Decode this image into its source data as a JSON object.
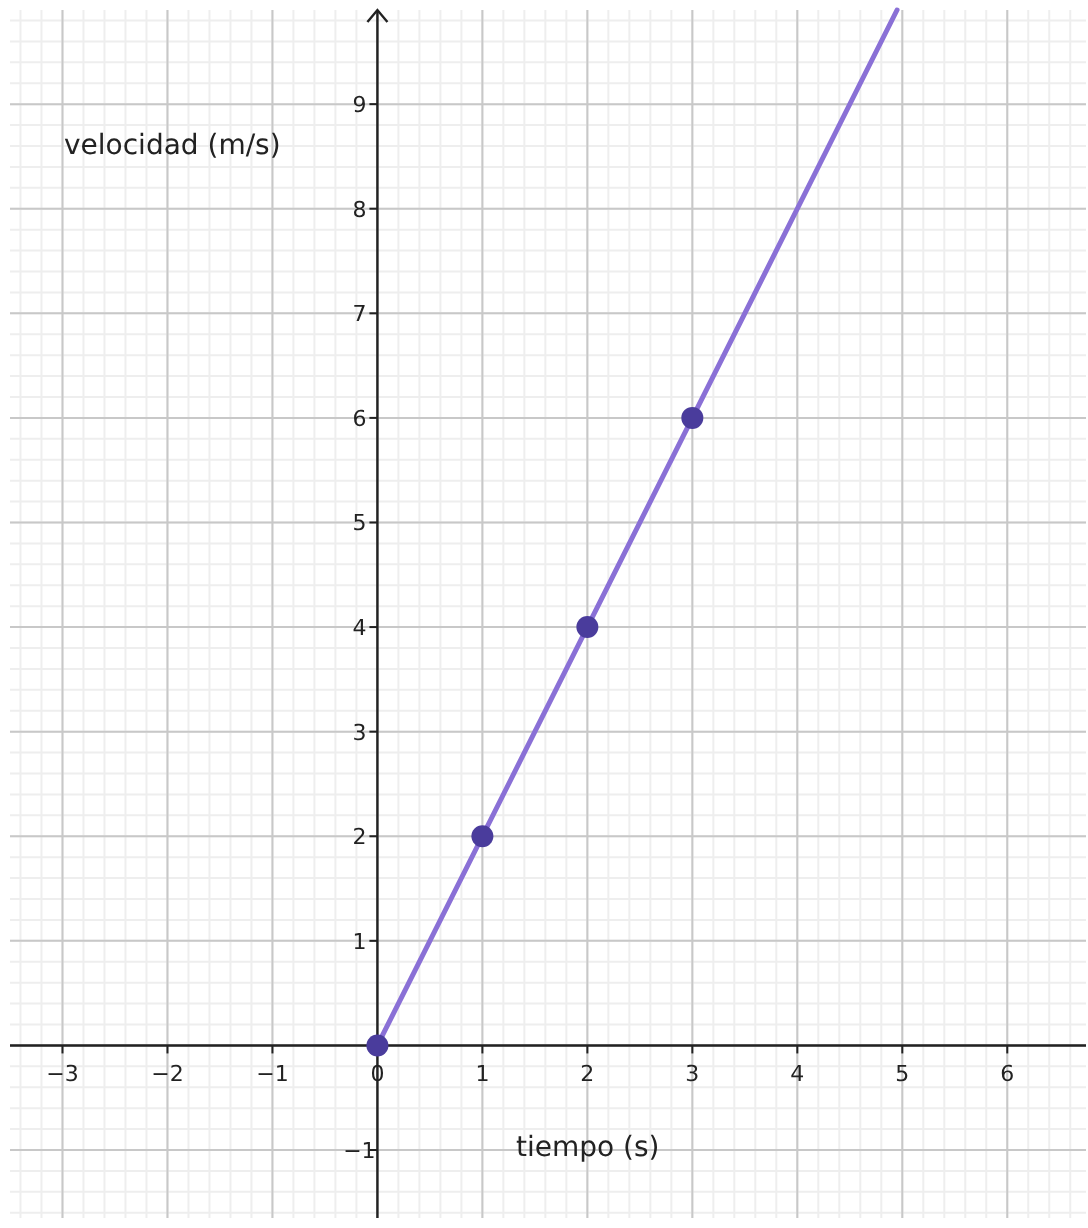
{
  "chart_data": {
    "type": "line",
    "xlabel": "tiempo (s)",
    "ylabel": "velocidad (m/s)",
    "xlim": [
      -3.5,
      6.75
    ],
    "ylim": [
      -1.65,
      9.9
    ],
    "xticks": [
      {
        "value": -3,
        "label": "−3"
      },
      {
        "value": -2,
        "label": "−2"
      },
      {
        "value": -1,
        "label": "−1"
      },
      0,
      1,
      2,
      3,
      4,
      5,
      6
    ],
    "yticks": [
      {
        "value": -1,
        "label": "−1"
      },
      {
        "value": 0,
        "label": null
      },
      1,
      2,
      3,
      4,
      5,
      6,
      7,
      8,
      9
    ],
    "grid": true,
    "series": [
      {
        "color": "#8a70d6",
        "x": [
          0,
          4.95
        ],
        "values": [
          0,
          9.9
        ],
        "marker": "none"
      },
      {
        "type": "scatter",
        "color": "#4a3c9c",
        "x": [
          0,
          1,
          2,
          3
        ],
        "values": [
          0,
          2,
          4,
          6
        ],
        "marker": "circle"
      }
    ]
  }
}
